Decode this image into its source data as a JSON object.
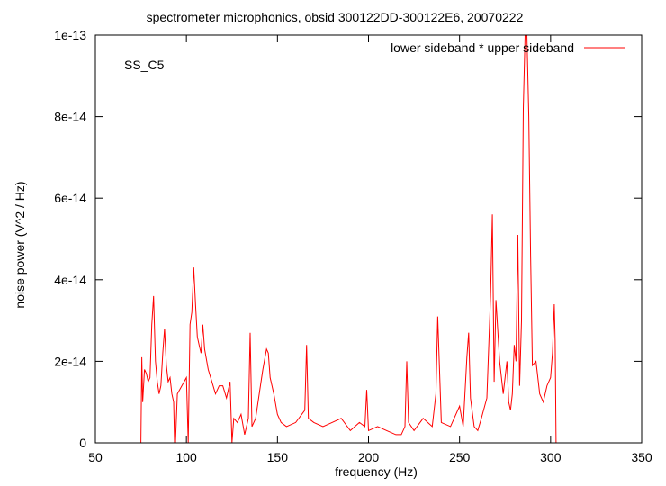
{
  "chart_data": {
    "type": "line",
    "title": "spectrometer microphonics, obsid 300122DD-300122E6, 20070222",
    "xlabel": "frequency (Hz)",
    "ylabel": "noise power (V^2 / Hz)",
    "annotation": "SS_C5",
    "xlim": [
      50,
      350
    ],
    "ylim": [
      0,
      1e-13
    ],
    "xticks": [
      50,
      100,
      150,
      200,
      250,
      300,
      350
    ],
    "xtick_labels": [
      "50",
      "100",
      "150",
      "200",
      "250",
      "300",
      "350"
    ],
    "yticks": [
      0,
      2e-14,
      4e-14,
      6e-14,
      8e-14,
      1e-13
    ],
    "ytick_labels": [
      "0",
      "2e-14",
      "4e-14",
      "6e-14",
      "8e-14",
      "1e-13"
    ],
    "grid": false,
    "legend_position": "top-right",
    "series": [
      {
        "name": "lower sideband * upper sideband",
        "color": "#ff0000",
        "x": [
          50,
          75,
          75.5,
          76,
          77,
          78,
          79,
          80,
          81,
          82,
          83,
          84,
          85,
          86,
          87,
          88,
          89,
          90,
          91,
          92,
          93,
          93.5,
          94,
          95,
          100,
          101,
          102,
          103,
          104,
          105,
          106,
          107,
          108,
          109,
          110,
          112,
          114,
          116,
          118,
          120,
          122,
          124,
          125,
          126,
          128,
          130,
          132,
          134,
          135,
          136,
          138,
          140,
          142,
          144,
          145,
          146,
          148,
          150,
          152,
          155,
          160,
          165,
          166,
          167,
          170,
          175,
          180,
          185,
          190,
          195,
          198,
          199,
          200,
          205,
          210,
          215,
          218,
          220,
          221,
          222,
          225,
          230,
          235,
          237,
          238,
          240,
          245,
          250,
          252,
          254,
          255,
          256,
          258,
          260,
          262,
          265,
          267,
          268,
          269,
          270,
          272,
          274,
          276,
          277,
          278,
          279,
          280,
          281,
          282,
          283,
          284,
          285,
          286,
          287,
          288,
          289,
          290,
          292,
          294,
          296,
          298,
          300,
          301,
          302,
          302.5,
          303,
          310,
          320,
          330,
          340,
          350
        ],
        "y": [
          0,
          0,
          2.1e-14,
          1e-14,
          1.8e-14,
          1.7e-14,
          1.5e-14,
          1.6e-14,
          2.9e-14,
          3.6e-14,
          2e-14,
          1.5e-14,
          1.2e-14,
          1.4e-14,
          2.2e-14,
          2.8e-14,
          1.9e-14,
          1.5e-14,
          1.6e-14,
          1.2e-14,
          1e-14,
          0,
          0,
          1.2e-14,
          1.6e-14,
          0,
          2.9e-14,
          3.2e-14,
          4.3e-14,
          3.4e-14,
          2.6e-14,
          2.4e-14,
          2.2e-14,
          2.9e-14,
          2.3e-14,
          1.8e-14,
          1.5e-14,
          1.2e-14,
          1.4e-14,
          1.4e-14,
          1.1e-14,
          1.5e-14,
          0,
          6e-15,
          5e-15,
          7e-15,
          2e-15,
          6e-15,
          2.7e-14,
          4e-15,
          6e-15,
          1.2e-14,
          1.8e-14,
          2.3e-14,
          2.2e-14,
          1.6e-14,
          1.2e-14,
          7e-15,
          5e-15,
          4e-15,
          5e-15,
          8e-15,
          2.4e-14,
          6e-15,
          5e-15,
          4e-15,
          5e-15,
          6e-15,
          3e-15,
          5e-15,
          4e-15,
          1.3e-14,
          3e-15,
          4e-15,
          3e-15,
          2e-15,
          2e-15,
          4e-15,
          2e-14,
          5e-15,
          3e-15,
          6e-15,
          4e-15,
          1.2e-14,
          3.1e-14,
          5e-15,
          4e-15,
          9e-15,
          4e-15,
          2.1e-14,
          2.7e-14,
          1.1e-14,
          4e-15,
          3e-15,
          6e-15,
          1.1e-14,
          3.6e-14,
          5.6e-14,
          1.5e-14,
          3.5e-14,
          2e-14,
          1.2e-14,
          2e-14,
          1e-14,
          8e-15,
          1.2e-14,
          2.4e-14,
          2e-14,
          5.1e-14,
          1.4e-14,
          3e-14,
          8.2e-14,
          1e-13,
          1e-13,
          8e-14,
          4.6e-14,
          1.9e-14,
          2e-14,
          1.2e-14,
          1e-14,
          1.4e-14,
          1.6e-14,
          2.2e-14,
          3.4e-14,
          2.5e-14,
          0,
          0,
          0,
          0,
          0,
          0
        ]
      }
    ]
  }
}
